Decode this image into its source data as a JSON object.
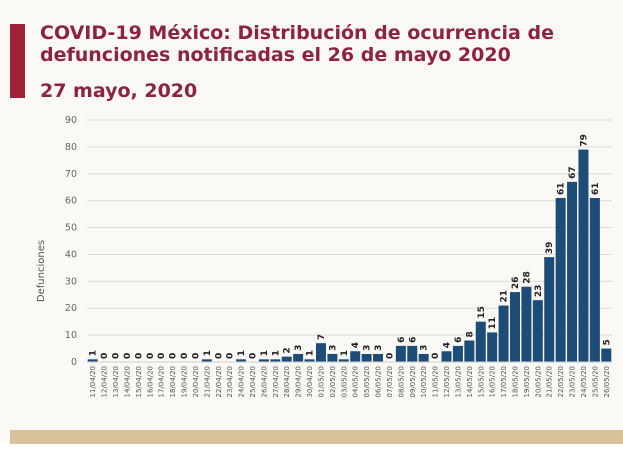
{
  "header": {
    "title": "COVID-19 México: Distribución de ocurrencia de defunciones notificadas el 26 de mayo 2020",
    "date": "27 mayo, 2020"
  },
  "colors": {
    "accent": "#9e2339",
    "bar": "#1d4c76",
    "footer": "#d9c29b"
  },
  "chart_data": {
    "type": "bar",
    "title": "",
    "xlabel": "",
    "ylabel": "Defunciones",
    "ylim": [
      0,
      90
    ],
    "yticks": [
      0,
      10,
      20,
      30,
      40,
      50,
      60,
      70,
      80,
      90
    ],
    "grid": true,
    "data_labels": true,
    "categories": [
      "11/04/20",
      "12/04/20",
      "13/04/20",
      "14/04/20",
      "15/04/20",
      "16/04/20",
      "17/04/20",
      "18/04/20",
      "19/04/20",
      "20/04/20",
      "21/04/20",
      "22/04/20",
      "23/04/20",
      "24/04/20",
      "25/04/20",
      "26/04/20",
      "27/04/20",
      "28/04/20",
      "29/04/20",
      "30/04/20",
      "01/05/20",
      "02/05/20",
      "03/05/20",
      "04/05/20",
      "05/05/20",
      "06/05/20",
      "07/05/20",
      "08/05/20",
      "09/05/20",
      "10/05/20",
      "11/05/20",
      "12/05/20",
      "13/05/20",
      "14/05/20",
      "15/05/20",
      "16/05/20",
      "17/05/20",
      "18/05/20",
      "19/05/20",
      "20/05/20",
      "21/05/20",
      "22/05/20",
      "23/05/20",
      "24/05/20",
      "25/05/20",
      "26/05/20"
    ],
    "values": [
      1,
      0,
      0,
      0,
      0,
      0,
      0,
      0,
      0,
      0,
      1,
      0,
      0,
      1,
      0,
      1,
      1,
      2,
      3,
      1,
      7,
      3,
      1,
      4,
      3,
      3,
      0,
      6,
      6,
      3,
      0,
      4,
      6,
      8,
      15,
      11,
      21,
      26,
      28,
      23,
      39,
      61,
      67,
      79,
      61,
      5
    ]
  }
}
